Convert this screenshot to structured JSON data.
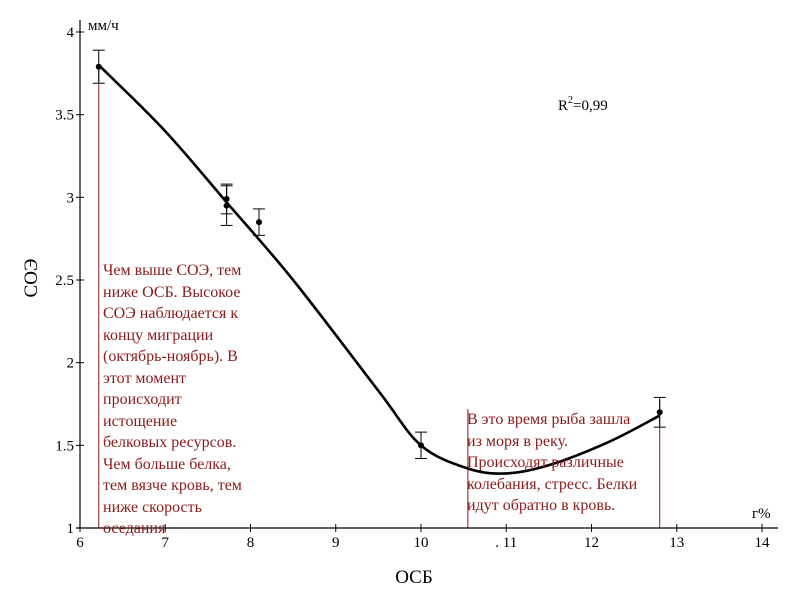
{
  "chart_data": {
    "type": "scatter",
    "xlabel": "ОСБ",
    "ylabel": "СОЭ",
    "x_unit": "г%",
    "y_unit": "мм/ч",
    "xlim": [
      6,
      14
    ],
    "ylim": [
      1,
      4
    ],
    "x_ticks": [
      "6",
      "7",
      "8",
      "9",
      "10",
      ". 11",
      "12",
      "13",
      "14"
    ],
    "y_ticks": [
      "1",
      "1.5",
      "2",
      "2.5",
      "3",
      "3.5",
      "4"
    ],
    "grid": false,
    "r2_label": "R",
    "r2_sup": "2",
    "r2_value": "=0,99",
    "points": [
      {
        "x": 6.22,
        "y": 3.79,
        "err": 0.1
      },
      {
        "x": 7.72,
        "y": 2.99,
        "err": 0.09
      },
      {
        "x": 7.72,
        "y": 2.95,
        "err": 0.12
      },
      {
        "x": 8.1,
        "y": 2.85,
        "err": 0.08
      },
      {
        "x": 10.0,
        "y": 1.5,
        "err": 0.08
      },
      {
        "x": 12.8,
        "y": 1.7,
        "err": 0.09
      }
    ],
    "fit_curve": [
      {
        "x": 6.22,
        "y": 3.8
      },
      {
        "x": 7.0,
        "y": 3.4
      },
      {
        "x": 7.72,
        "y": 2.97
      },
      {
        "x": 8.5,
        "y": 2.5
      },
      {
        "x": 9.5,
        "y": 1.83
      },
      {
        "x": 10.0,
        "y": 1.5
      },
      {
        "x": 10.55,
        "y": 1.36
      },
      {
        "x": 11.0,
        "y": 1.33
      },
      {
        "x": 11.5,
        "y": 1.38
      },
      {
        "x": 12.2,
        "y": 1.52
      },
      {
        "x": 12.8,
        "y": 1.68
      }
    ],
    "guide_lines_x": [
      6.22,
      10.55,
      12.8
    ],
    "annotations": [
      "Чем выше СОЭ, тем\nниже ОСБ. Высокое\nСОЭ наблюдается к\nконцу миграции\n(октябрь-ноябрь). В\nэтот момент\nпроисходит\nистощение\nбелковых ресурсов.\nЧем больше белка,\nтем вязче кровь, тем\nниже скорость\nоседания",
      "В это время рыба зашла\nиз моря в реку.\nПроисходят различные\nколебания, стресс. Белки\nидут обратно в кровь."
    ]
  }
}
